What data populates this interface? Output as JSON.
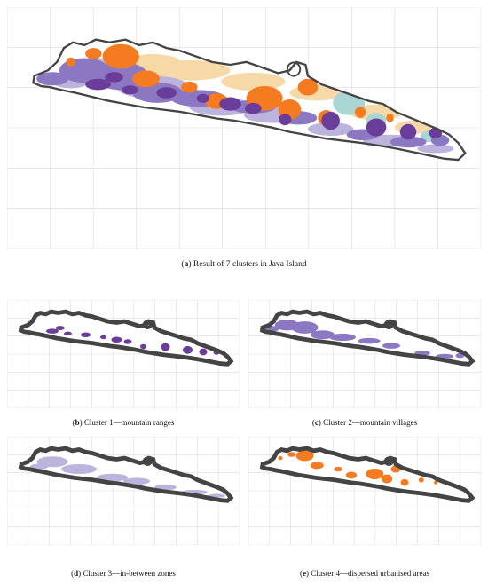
{
  "figure": {
    "panels": [
      {
        "id": "a",
        "label": "a",
        "caption": "Result of 7 clusters in Java Island",
        "layers": [
          "cluster1",
          "cluster2",
          "cluster3",
          "cluster4",
          "cluster5",
          "cluster6",
          "cluster7"
        ]
      },
      {
        "id": "b",
        "label": "b",
        "caption": "Cluster 1—mountain ranges",
        "layers": [
          "cluster1"
        ]
      },
      {
        "id": "c",
        "label": "c",
        "caption": "Cluster 2—mountain villages",
        "layers": [
          "cluster2"
        ]
      },
      {
        "id": "d",
        "label": "d",
        "caption": "Cluster 3—in-between zones",
        "layers": [
          "cluster3"
        ]
      },
      {
        "id": "e",
        "label": "e",
        "caption": "Cluster 4—dispersed urbanised areas",
        "layers": [
          "cluster4"
        ]
      }
    ]
  },
  "colors": {
    "cluster1": "#6a3d9a",
    "cluster2": "#8c78c2",
    "cluster3": "#bcb4dd",
    "cluster4": "#f47b20",
    "cluster5": "#f7d9a8",
    "cluster6": "#a9d6d4",
    "cluster7": "#e88a3a",
    "outline": "#444444",
    "grid": "#dcdcdc"
  }
}
